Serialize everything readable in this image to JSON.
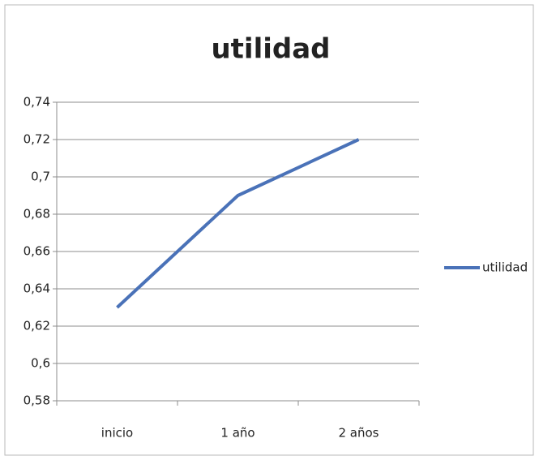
{
  "chart_data": {
    "type": "line",
    "title": "utilidad",
    "categories": [
      "inicio",
      "1 año",
      "2 años"
    ],
    "series": [
      {
        "name": "utilidad",
        "color": "#4a72b8",
        "values": [
          0.63,
          0.69,
          0.72
        ]
      }
    ],
    "ylim": [
      0.58,
      0.74
    ],
    "yticks": [
      {
        "value": 0.58,
        "label": "0,58"
      },
      {
        "value": 0.6,
        "label": "0,6"
      },
      {
        "value": 0.62,
        "label": "0,62"
      },
      {
        "value": 0.64,
        "label": "0,64"
      },
      {
        "value": 0.66,
        "label": "0,66"
      },
      {
        "value": 0.68,
        "label": "0,68"
      },
      {
        "value": 0.7,
        "label": "0,7"
      },
      {
        "value": 0.72,
        "label": "0,72"
      },
      {
        "value": 0.74,
        "label": "0,74"
      }
    ],
    "grid": true,
    "legend": "right"
  }
}
